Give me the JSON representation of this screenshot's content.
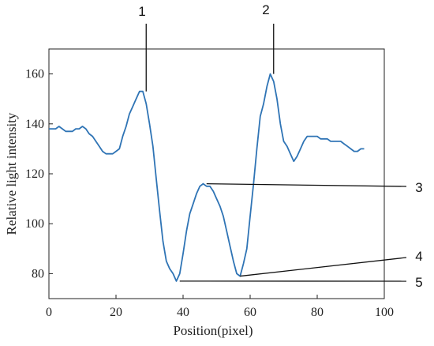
{
  "chart_data": {
    "type": "line",
    "xlabel": "Position(pixel)",
    "ylabel": "Relative light intensity",
    "xlim": [
      0,
      100
    ],
    "ylim": [
      70,
      170
    ],
    "x_ticks": [
      0,
      20,
      40,
      60,
      80,
      100
    ],
    "y_ticks": [
      80,
      100,
      120,
      140,
      160
    ],
    "grid": false,
    "series": [
      {
        "color": "#2f74b5",
        "x": [
          0,
          1,
          2,
          3,
          4,
          5,
          6,
          7,
          8,
          9,
          10,
          11,
          12,
          13,
          14,
          15,
          16,
          17,
          18,
          19,
          20,
          21,
          22,
          23,
          24,
          25,
          26,
          27,
          28,
          29,
          30,
          31,
          32,
          33,
          34,
          35,
          36,
          37,
          38,
          39,
          40,
          41,
          42,
          43,
          44,
          45,
          46,
          47,
          48,
          49,
          50,
          51,
          52,
          53,
          54,
          55,
          56,
          57,
          58,
          59,
          60,
          61,
          62,
          63,
          64,
          65,
          66,
          67,
          68,
          69,
          70,
          71,
          72,
          73,
          74,
          75,
          76,
          77,
          78,
          79,
          80,
          81,
          82,
          83,
          84,
          85,
          86,
          87,
          88,
          89,
          90,
          91,
          92,
          93,
          94
        ],
        "y": [
          138,
          138,
          138,
          139,
          138,
          137,
          137,
          137,
          138,
          138,
          139,
          138,
          136,
          135,
          133,
          131,
          129,
          128,
          128,
          128,
          129,
          130,
          135,
          139,
          144,
          147,
          150,
          153,
          153,
          148,
          140,
          131,
          118,
          105,
          93,
          85,
          82,
          80,
          77,
          80,
          88,
          97,
          104,
          108,
          112,
          115,
          116,
          115,
          115,
          113,
          110,
          107,
          103,
          97,
          91,
          85,
          80,
          79,
          84,
          90,
          103,
          116,
          130,
          143,
          148,
          155,
          160,
          157,
          150,
          140,
          133,
          131,
          128,
          125,
          127,
          130,
          133,
          135,
          135,
          135,
          135,
          134,
          134,
          134,
          133,
          133,
          133,
          133,
          132,
          131,
          130,
          129,
          129,
          130,
          130
        ]
      }
    ],
    "annotations": [
      {
        "label": "1",
        "x": 29,
        "y": 153
      },
      {
        "label": "2",
        "x": 67,
        "y": 160
      },
      {
        "label": "3",
        "x": 47,
        "y": 116
      },
      {
        "label": "4",
        "x": 57,
        "y": 79
      },
      {
        "label": "5",
        "x": 39,
        "y": 77
      }
    ]
  }
}
